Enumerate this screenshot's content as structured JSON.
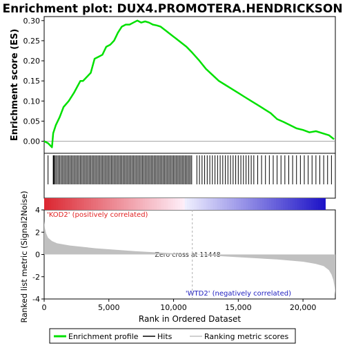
{
  "title": "Enrichment plot: DUX4.PROMOTERA.HENDRICKSON",
  "colors": {
    "enrichment_line": "#00e000",
    "hits": "#000000",
    "ranking_fill": "#c0c0c0",
    "positive_label": "#e02020",
    "negative_label": "#2020c0",
    "zero_cross_line": "#b0b0b0"
  },
  "legend": {
    "enrichment": "Enrichment profile",
    "hits": "Hits",
    "ranking": "Ranking metric scores"
  },
  "labels": {
    "positive": "'KOD2' (positively correlated)",
    "negative": "'WTD2' (negatively correlated)",
    "zero_cross": "Zero cross at 11448"
  },
  "chart_data": [
    {
      "type": "line",
      "name": "enrichment",
      "ylabel": "Enrichment score (ES)",
      "xlim": [
        0,
        22500
      ],
      "ylim": [
        -0.03,
        0.31
      ],
      "yticks": [
        0.0,
        0.05,
        0.1,
        0.15,
        0.2,
        0.25,
        0.3
      ],
      "ytick_labels": [
        "0.00",
        "0.05",
        "0.10",
        "0.15",
        "0.20",
        "0.25",
        "0.30"
      ],
      "grid": false,
      "x": [
        0,
        300,
        600,
        700,
        900,
        1200,
        1500,
        1900,
        2300,
        2800,
        3000,
        3300,
        3600,
        3900,
        4200,
        4500,
        4800,
        5100,
        5400,
        5700,
        6000,
        6300,
        6600,
        6900,
        7200,
        7500,
        7800,
        8100,
        8400,
        8700,
        9000,
        9400,
        9800,
        10200,
        10600,
        11000,
        11448,
        12000,
        12500,
        13000,
        13500,
        14000,
        14500,
        15000,
        15500,
        16000,
        16500,
        17000,
        17500,
        18000,
        18500,
        19000,
        19500,
        20000,
        20500,
        21000,
        21500,
        22000,
        22400
      ],
      "y": [
        0.0,
        -0.005,
        -0.015,
        0.02,
        0.04,
        0.06,
        0.085,
        0.1,
        0.12,
        0.15,
        0.15,
        0.16,
        0.17,
        0.205,
        0.21,
        0.215,
        0.235,
        0.24,
        0.25,
        0.27,
        0.285,
        0.29,
        0.29,
        0.295,
        0.3,
        0.295,
        0.298,
        0.295,
        0.29,
        0.288,
        0.285,
        0.275,
        0.265,
        0.255,
        0.245,
        0.235,
        0.22,
        0.2,
        0.18,
        0.165,
        0.15,
        0.14,
        0.13,
        0.12,
        0.11,
        0.1,
        0.09,
        0.08,
        0.07,
        0.055,
        0.048,
        0.04,
        0.032,
        0.028,
        0.022,
        0.025,
        0.02,
        0.015,
        0.005
      ]
    },
    {
      "type": "scatter",
      "name": "hits",
      "xlim": [
        0,
        22500
      ],
      "x": [
        300,
        700,
        750,
        800,
        900,
        1000,
        1100,
        1200,
        1300,
        1400,
        1500,
        1600,
        1700,
        1800,
        1900,
        2000,
        2100,
        2200,
        2300,
        2400,
        2500,
        2600,
        2700,
        2800,
        2900,
        3000,
        3100,
        3200,
        3300,
        3400,
        3500,
        3600,
        3700,
        3800,
        3900,
        4000,
        4100,
        4200,
        4300,
        4400,
        4500,
        4600,
        4700,
        4800,
        4900,
        5000,
        5100,
        5200,
        5300,
        5400,
        5500,
        5600,
        5700,
        5800,
        5900,
        6000,
        6100,
        6200,
        6300,
        6400,
        6500,
        6600,
        6700,
        6800,
        6900,
        7000,
        7100,
        7200,
        7300,
        7400,
        7500,
        7600,
        7700,
        7800,
        7900,
        8000,
        8100,
        8200,
        8300,
        8400,
        8500,
        8600,
        8700,
        8800,
        8900,
        9000,
        9100,
        9200,
        9300,
        9400,
        9500,
        9600,
        9700,
        9800,
        9900,
        10000,
        10100,
        10200,
        10300,
        10400,
        10500,
        10600,
        10700,
        10800,
        10900,
        11000,
        11100,
        11200,
        11300,
        11400,
        11800,
        12000,
        12200,
        12400,
        12600,
        12800,
        13000,
        13200,
        13400,
        13600,
        13800,
        14000,
        14200,
        14400,
        14600,
        14800,
        15000,
        15200,
        15400,
        15600,
        15800,
        16000,
        16200,
        16500,
        16800,
        17100,
        17400,
        17700,
        18000,
        18300,
        18600,
        18900,
        19200,
        19500,
        19800,
        20100,
        20400,
        20700,
        21000,
        21300,
        21600,
        21900,
        22200
      ]
    },
    {
      "type": "area",
      "name": "ranking_metric",
      "xlabel": "Rank in Ordered Dataset",
      "ylabel": "Ranked list metric (Signal2Noise)",
      "xlim": [
        0,
        22500
      ],
      "ylim": [
        -4,
        4
      ],
      "xticks": [
        0,
        5000,
        10000,
        15000,
        20000
      ],
      "xtick_labels": [
        "0",
        "5,000",
        "10,000",
        "15,000",
        "20,000"
      ],
      "yticks": [
        -4,
        -2,
        0,
        2,
        4
      ],
      "ytick_labels": [
        "-4",
        "-2",
        "0",
        "2",
        "4"
      ],
      "x": [
        0,
        50,
        150,
        300,
        600,
        1000,
        2000,
        4000,
        7000,
        11448,
        15000,
        18000,
        20000,
        21000,
        21600,
        22000,
        22200,
        22350,
        22450,
        22500
      ],
      "y": [
        3.0,
        2.4,
        1.9,
        1.5,
        1.2,
        1.0,
        0.8,
        0.55,
        0.3,
        0.0,
        -0.25,
        -0.45,
        -0.65,
        -0.85,
        -1.05,
        -1.4,
        -1.8,
        -2.3,
        -3.0,
        -3.6
      ]
    }
  ]
}
